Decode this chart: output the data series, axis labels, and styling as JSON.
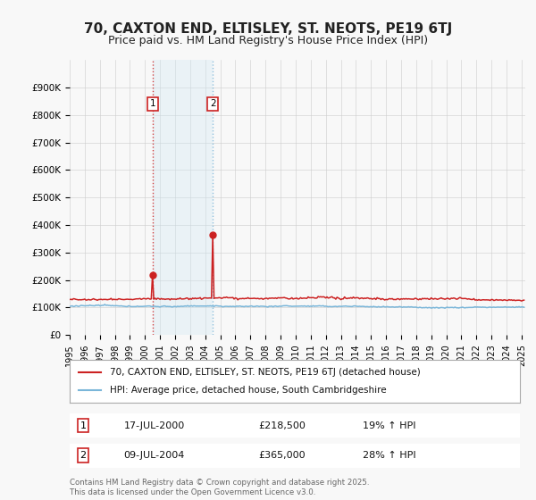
{
  "title": "70, CAXTON END, ELTISLEY, ST. NEOTS, PE19 6TJ",
  "subtitle": "Price paid vs. HM Land Registry's House Price Index (HPI)",
  "title_fontsize": 11,
  "subtitle_fontsize": 9,
  "legend_line1": "70, CAXTON END, ELTISLEY, ST. NEOTS, PE19 6TJ (detached house)",
  "legend_line2": "HPI: Average price, detached house, South Cambridgeshire",
  "annotation1_label": "1",
  "annotation1_date": "17-JUL-2000",
  "annotation1_price": "£218,500",
  "annotation1_hpi": "19% ↑ HPI",
  "annotation2_label": "2",
  "annotation2_date": "09-JUL-2004",
  "annotation2_price": "£365,000",
  "annotation2_hpi": "28% ↑ HPI",
  "footer": "Contains HM Land Registry data © Crown copyright and database right 2025.\nThis data is licensed under the Open Government Licence v3.0.",
  "hpi_color": "#7ab6d9",
  "price_color": "#cc2222",
  "annotation_box_color": "#cc2222",
  "vline1_color": "#cc2222",
  "vline2_color": "#7ab6d9",
  "shading_color": "#d0e8f5",
  "background_color": "#f8f8f8",
  "plot_bg_color": "#f8f8f8",
  "ylim": [
    0,
    1000000
  ],
  "yticks": [
    0,
    100000,
    200000,
    300000,
    400000,
    500000,
    600000,
    700000,
    800000,
    900000
  ],
  "ytick_labels": [
    "£0",
    "£100K",
    "£200K",
    "£300K",
    "£400K",
    "£500K",
    "£600K",
    "£700K",
    "£800K",
    "£900K"
  ],
  "xstart_year": 1995,
  "xend_year": 2025
}
